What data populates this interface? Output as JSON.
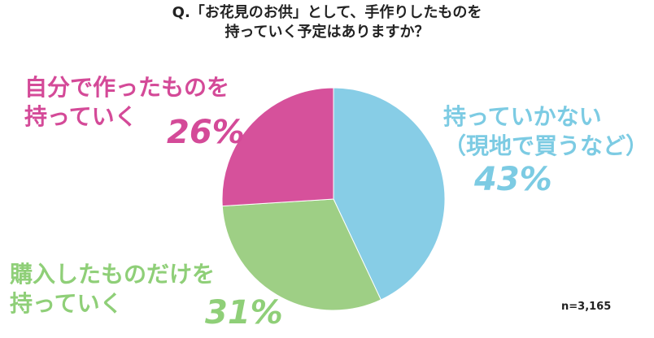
{
  "chart_data": {
    "type": "pie",
    "title": "Q.「お花見のお供」として、手作りしたものを\n持っていく予定はありますか？",
    "series": [
      {
        "name": "持っていかない\n（現地で買うなど）",
        "color": "#87cde6",
        "values": [
          43
        ],
        "value_labels": [
          "43%"
        ]
      },
      {
        "name": "購入したものだけを\n持っていく",
        "color": "#9ecf85",
        "values": [
          31
        ],
        "value_labels": [
          "31%"
        ]
      },
      {
        "name": "自分で作ったものを\n持っていく",
        "color": "#d6519b",
        "values": [
          26
        ],
        "value_labels": [
          "26%"
        ]
      }
    ],
    "annotation": "n=3,165"
  }
}
